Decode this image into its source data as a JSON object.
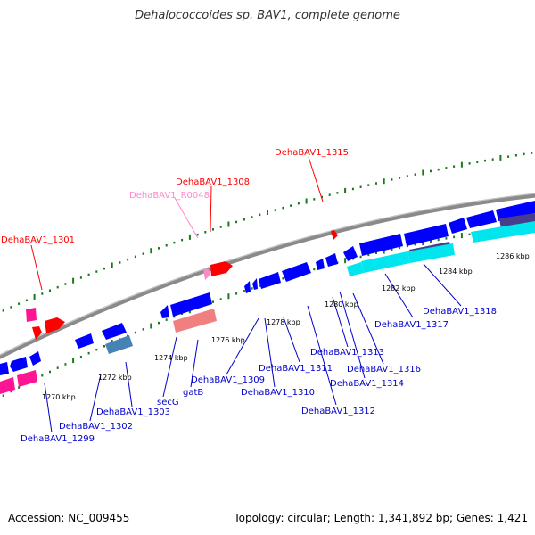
{
  "title": "Dehalococcoides sp. BAV1, complete genome",
  "footer": {
    "accession": "Accession: NC_009455",
    "topology": "Topology: circular; Length: 1,341,892 bp; Genes: 1,421"
  },
  "colors": {
    "backbone": "#8a8a8a",
    "tick": "#1a7a1a",
    "forward_gene": "#ff0000",
    "forward_rna": "#ff1493",
    "reverse_gene": "#0000ff",
    "reverse_pseudo": "#00e5ee",
    "label_forward": "#ff0000",
    "label_rna": "#ff88cc",
    "label_reverse": "#0000cc"
  },
  "scale_labels": [
    "1270 kbp",
    "1272 kbp",
    "1274 kbp",
    "1276 kbp",
    "1278 kbp",
    "1280 kbp",
    "1282 kbp",
    "1284 kbp",
    "1286 kbp"
  ],
  "forward_labels": [
    "DehaBAV1_1301",
    "DehaBAV1_R0048",
    "DehaBAV1_1308",
    "DehaBAV1_1315"
  ],
  "reverse_labels": [
    "DehaBAV1_1299",
    "DehaBAV1_1302",
    "DehaBAV1_1303",
    "secG",
    "gatB",
    "DehaBAV1_1309",
    "DehaBAV1_1310",
    "DehaBAV1_1311",
    "DehaBAV1_1312",
    "DehaBAV1_1313",
    "DehaBAV1_1314",
    "DehaBAV1_1316",
    "DehaBAV1_1317",
    "DehaBAV1_1318"
  ]
}
